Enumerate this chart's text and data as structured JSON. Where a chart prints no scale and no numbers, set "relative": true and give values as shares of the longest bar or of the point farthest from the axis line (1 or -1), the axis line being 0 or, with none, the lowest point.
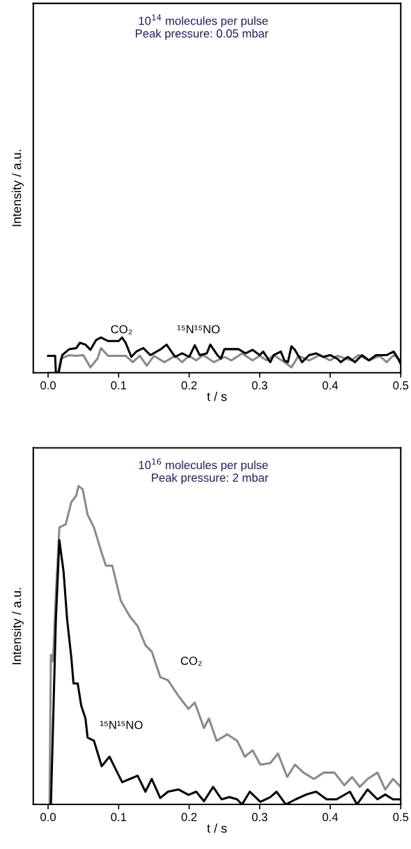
{
  "chart_data": [
    {
      "type": "line",
      "relative": true,
      "xlabel": "t / s",
      "ylabel": "Intensity / a.u.",
      "xlim": [
        -0.021,
        0.5
      ],
      "xticks": [
        {
          "value": 0,
          "label": "0.0"
        },
        0.1,
        0.2,
        0.3,
        0.4,
        0.5
      ],
      "grid": false,
      "legend": false,
      "annotations": [
        "10$^{14}$ molecules per pulse\nPeak pressure: 0.05 mbar",
        "CO₂",
        "¹⁵N¹⁵NO"
      ],
      "series": [
        {
          "color": "#8a8a8a",
          "x": [
            0.0,
            0.014,
            0.018,
            0.03,
            0.04,
            0.05,
            0.06,
            0.07,
            0.075,
            0.085,
            0.11,
            0.12,
            0.13,
            0.14,
            0.15,
            0.165,
            0.18,
            0.19,
            0.2,
            0.21,
            0.22,
            0.235,
            0.25,
            0.26,
            0.275,
            0.29,
            0.3,
            0.31,
            0.32,
            0.335,
            0.345,
            0.355,
            0.37,
            0.385,
            0.4,
            0.41,
            0.43,
            0.44,
            0.455,
            0.47,
            0.48,
            0.49,
            0.5
          ],
          "values": [
            0.0,
            0.0,
            0.4,
            0.5,
            0.48,
            0.5,
            0.15,
            0.4,
            0.7,
            0.48,
            0.48,
            0.3,
            0.48,
            0.2,
            0.48,
            0.3,
            0.48,
            0.3,
            0.48,
            0.35,
            0.5,
            0.3,
            0.45,
            0.35,
            0.55,
            0.35,
            0.48,
            0.35,
            0.5,
            0.3,
            0.15,
            0.48,
            0.35,
            0.5,
            0.35,
            0.48,
            0.35,
            0.5,
            0.35,
            0.48,
            0.3,
            0.5,
            0.35
          ]
        },
        {
          "color": "#000000",
          "x": [
            0.0,
            0.01,
            0.011,
            0.015,
            0.02,
            0.03,
            0.04,
            0.045,
            0.053,
            0.06,
            0.068,
            0.075,
            0.085,
            0.1,
            0.105,
            0.11,
            0.118,
            0.125,
            0.135,
            0.145,
            0.16,
            0.168,
            0.18,
            0.19,
            0.2,
            0.208,
            0.215,
            0.225,
            0.23,
            0.24,
            0.245,
            0.25,
            0.27,
            0.28,
            0.29,
            0.3,
            0.305,
            0.315,
            0.32,
            0.33,
            0.335,
            0.34,
            0.345,
            0.35,
            0.36,
            0.37,
            0.38,
            0.39,
            0.4,
            0.41,
            0.415,
            0.425,
            0.435,
            0.445,
            0.455,
            0.465,
            0.48,
            0.49,
            0.495,
            0.5
          ],
          "values": [
            0.48,
            0.48,
            0.0,
            0.0,
            0.5,
            0.67,
            0.7,
            0.85,
            0.8,
            0.65,
            0.93,
            1.0,
            0.9,
            0.9,
            1.0,
            0.85,
            0.45,
            0.6,
            0.7,
            0.5,
            0.67,
            0.8,
            0.45,
            0.55,
            0.45,
            0.78,
            0.5,
            0.55,
            0.8,
            0.5,
            0.4,
            0.67,
            0.67,
            0.55,
            0.65,
            0.5,
            0.6,
            0.3,
            0.5,
            0.6,
            0.35,
            0.3,
            0.75,
            0.65,
            0.3,
            0.5,
            0.55,
            0.45,
            0.5,
            0.4,
            0.3,
            0.45,
            0.3,
            0.5,
            0.35,
            0.5,
            0.5,
            0.6,
            0.45,
            0.25
          ]
        }
      ]
    },
    {
      "type": "line",
      "relative": true,
      "xlabel": "t / s",
      "ylabel": "Intensity / a.u.",
      "xlim": [
        -0.021,
        0.5
      ],
      "xticks": [
        {
          "value": 0,
          "label": "0.0"
        },
        0.1,
        0.2,
        0.3,
        0.4,
        0.5
      ],
      "grid": false,
      "legend": false,
      "annotations": [
        "10$^{16}$ molecules per pulse\nPeak pressure: 2 mbar"
      ],
      "series": [
        {
          "name": "CO₂",
          "color": "#8a8a8a",
          "x": [
            0.002,
            0.004,
            0.007,
            0.011,
            0.016,
            0.025,
            0.033,
            0.04,
            0.043,
            0.049,
            0.056,
            0.065,
            0.076,
            0.082,
            0.091,
            0.103,
            0.116,
            0.127,
            0.138,
            0.147,
            0.159,
            0.17,
            0.185,
            0.199,
            0.208,
            0.221,
            0.228,
            0.239,
            0.254,
            0.268,
            0.279,
            0.29,
            0.301,
            0.315,
            0.326,
            0.339,
            0.35,
            0.362,
            0.377,
            0.391,
            0.406,
            0.42,
            0.431,
            0.442,
            0.453,
            0.467,
            0.478,
            0.489,
            0.5
          ],
          "values": [
            0.0,
            0.47,
            0.45,
            0.66,
            0.87,
            0.88,
            0.95,
            0.97,
            1.0,
            0.99,
            0.91,
            0.87,
            0.79,
            0.75,
            0.75,
            0.64,
            0.59,
            0.56,
            0.5,
            0.48,
            0.4,
            0.39,
            0.34,
            0.3,
            0.32,
            0.24,
            0.27,
            0.2,
            0.22,
            0.2,
            0.15,
            0.17,
            0.125,
            0.13,
            0.16,
            0.086,
            0.125,
            0.1,
            0.08,
            0.1,
            0.1,
            0.06,
            0.086,
            0.055,
            0.08,
            0.1,
            0.047,
            0.08,
            0.055
          ]
        },
        {
          "name": "¹⁵N¹⁵NO",
          "color": "#000000",
          "x": [
            0.004,
            0.011,
            0.016,
            0.022,
            0.027,
            0.033,
            0.036,
            0.042,
            0.047,
            0.053,
            0.056,
            0.065,
            0.076,
            0.087,
            0.096,
            0.105,
            0.116,
            0.127,
            0.138,
            0.147,
            0.159,
            0.17,
            0.185,
            0.199,
            0.21,
            0.221,
            0.234,
            0.246,
            0.257,
            0.268,
            0.275,
            0.286,
            0.301,
            0.315,
            0.324,
            0.337,
            0.351,
            0.366,
            0.38,
            0.395,
            0.409,
            0.428,
            0.438,
            0.453,
            0.467,
            0.478,
            0.489,
            0.5
          ],
          "values": [
            0.0,
            0.58,
            0.83,
            0.73,
            0.58,
            0.46,
            0.38,
            0.38,
            0.31,
            0.27,
            0.21,
            0.2,
            0.12,
            0.15,
            0.11,
            0.07,
            0.08,
            0.09,
            0.04,
            0.08,
            0.02,
            0.04,
            0.047,
            0.03,
            0.04,
            0.01,
            0.055,
            0.016,
            0.023,
            0.016,
            0.0,
            0.04,
            0.008,
            0.023,
            0.04,
            0.0,
            0.016,
            0.031,
            0.04,
            0.016,
            0.016,
            0.04,
            0.0,
            0.047,
            0.016,
            0.031,
            0.016,
            0.016
          ]
        }
      ]
    }
  ]
}
